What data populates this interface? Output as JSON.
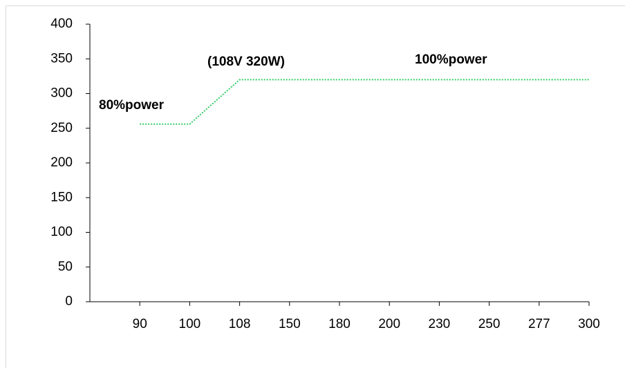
{
  "chart_data": {
    "type": "line",
    "categories": [
      "90",
      "100",
      "108",
      "150",
      "180",
      "200",
      "230",
      "250",
      "277",
      "300"
    ],
    "series": [
      {
        "color": "#33cc66",
        "values": [
          256,
          256,
          320,
          320,
          320,
          320,
          320,
          320,
          320,
          320
        ]
      }
    ],
    "ylim": [
      0,
      400
    ],
    "yticks": [
      0,
      50,
      100,
      150,
      200,
      250,
      300,
      350,
      400
    ],
    "annotations": [
      "80%power",
      "(108V 320W)",
      "100%power"
    ]
  }
}
